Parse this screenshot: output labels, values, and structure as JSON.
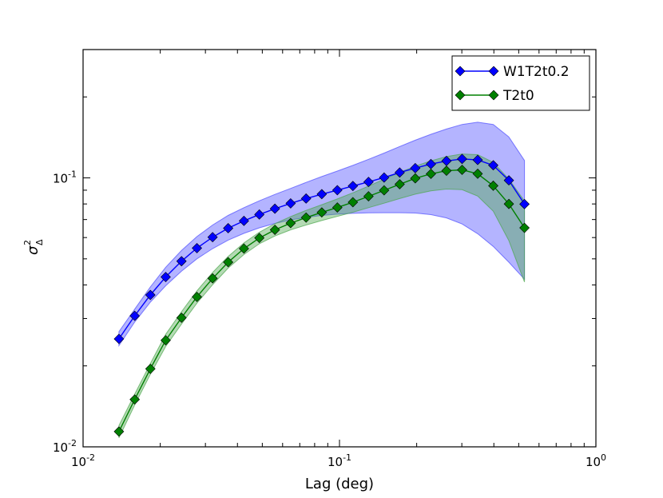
{
  "chart_data": {
    "type": "line",
    "title": "",
    "xlabel": "Lag (deg)",
    "ylabel": "σ²_Δ",
    "ylabel_parts": {
      "base": "σ",
      "sup": "2",
      "sub": "Δ"
    },
    "xscale": "log",
    "yscale": "log",
    "xlim": [
      0.01,
      1.0
    ],
    "ylim": [
      0.01,
      0.3
    ],
    "xticks": [
      {
        "value": 0.01,
        "base": "10",
        "exp": "-2"
      },
      {
        "value": 0.1,
        "base": "10",
        "exp": "-1"
      },
      {
        "value": 1.0,
        "base": "10",
        "exp": "0"
      }
    ],
    "yticks": [
      {
        "value": 0.01,
        "base": "10",
        "exp": "-2"
      },
      {
        "value": 0.1,
        "base": "10",
        "exp": "-1"
      }
    ],
    "legend": {
      "position": "top-right"
    },
    "x": [
      0.0138,
      0.0159,
      0.0183,
      0.021,
      0.0242,
      0.0278,
      0.032,
      0.0368,
      0.0424,
      0.0487,
      0.056,
      0.0645,
      0.0741,
      0.0853,
      0.0981,
      0.1128,
      0.1298,
      0.1493,
      0.1717,
      0.1975,
      0.2273,
      0.2614,
      0.3007,
      0.3459,
      0.3979,
      0.4577,
      0.5266
    ],
    "series": [
      {
        "name": "W1T2t0.2",
        "color": "#0000ff",
        "band_color": "#4c4cff",
        "values": [
          0.0252,
          0.0307,
          0.0367,
          0.0428,
          0.049,
          0.0548,
          0.0602,
          0.065,
          0.0692,
          0.0731,
          0.0768,
          0.0804,
          0.0838,
          0.087,
          0.09,
          0.0933,
          0.0966,
          0.1003,
          0.1047,
          0.1087,
          0.1126,
          0.1156,
          0.1176,
          0.1166,
          0.1114,
          0.0979,
          0.0799
        ],
        "upper": [
          0.0268,
          0.0325,
          0.0393,
          0.0465,
          0.0537,
          0.0605,
          0.0668,
          0.0725,
          0.0775,
          0.0822,
          0.0868,
          0.0914,
          0.0962,
          0.1011,
          0.106,
          0.1113,
          0.1172,
          0.1237,
          0.1308,
          0.1381,
          0.1452,
          0.1519,
          0.158,
          0.161,
          0.158,
          0.142,
          0.116
        ],
        "lower": [
          0.0238,
          0.0291,
          0.0345,
          0.0397,
          0.045,
          0.05,
          0.0546,
          0.0587,
          0.0622,
          0.0652,
          0.0677,
          0.0698,
          0.0713,
          0.0725,
          0.0733,
          0.0738,
          0.0741,
          0.0742,
          0.0742,
          0.074,
          0.073,
          0.071,
          0.0674,
          0.062,
          0.0556,
          0.0486,
          0.042
        ]
      },
      {
        "name": "T2t0",
        "color": "#008000",
        "band_color": "#4ca64c",
        "values": [
          0.0114,
          0.015,
          0.0195,
          0.0249,
          0.0302,
          0.0361,
          0.0423,
          0.0486,
          0.0546,
          0.0598,
          0.0641,
          0.0679,
          0.0712,
          0.0744,
          0.0776,
          0.0812,
          0.0854,
          0.0899,
          0.0947,
          0.0996,
          0.1035,
          0.1063,
          0.1071,
          0.1036,
          0.0935,
          0.08,
          0.0652
        ],
        "upper": [
          0.012,
          0.0157,
          0.0204,
          0.0262,
          0.0318,
          0.038,
          0.0445,
          0.051,
          0.0573,
          0.0628,
          0.0676,
          0.0718,
          0.0757,
          0.0795,
          0.0835,
          0.088,
          0.0932,
          0.0989,
          0.1048,
          0.1106,
          0.1157,
          0.12,
          0.1227,
          0.122,
          0.1142,
          0.099,
          0.082
        ],
        "lower": [
          0.0108,
          0.0143,
          0.0186,
          0.0236,
          0.0286,
          0.0342,
          0.0401,
          0.0462,
          0.0519,
          0.0569,
          0.0608,
          0.0641,
          0.0668,
          0.0694,
          0.0719,
          0.0745,
          0.0775,
          0.0805,
          0.0838,
          0.087,
          0.0895,
          0.0909,
          0.0904,
          0.0856,
          0.0752,
          0.0585,
          0.041
        ]
      }
    ]
  }
}
